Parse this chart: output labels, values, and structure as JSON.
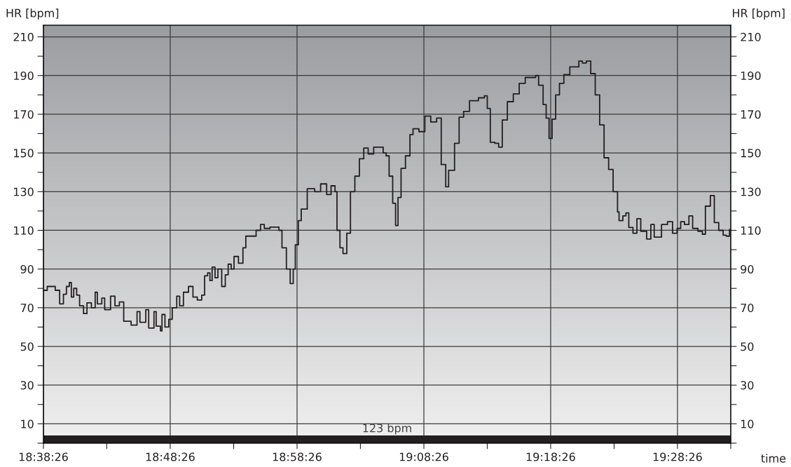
{
  "chart_data": {
    "type": "step",
    "xlabel": "time",
    "ylabel": "HR [bpm]",
    "y2label": "HR [bpm]",
    "x": [
      18.6406,
      18.6456,
      18.6514,
      18.6561,
      18.6619,
      18.6669,
      18.6708,
      18.6746,
      18.6773,
      18.6804,
      18.6843,
      18.6881,
      18.6933,
      18.6978,
      18.7036,
      18.7086,
      18.7114,
      18.7173,
      18.7211,
      18.7288,
      18.7346,
      18.7404,
      18.7461,
      18.7558,
      18.7636,
      18.7674,
      18.7751,
      18.7789,
      18.7859,
      18.7888,
      18.7944,
      18.7964,
      18.8003,
      18.8053,
      18.8099,
      18.8158,
      18.8196,
      18.8246,
      18.8313,
      18.8371,
      18.8428,
      18.8486,
      18.8524,
      18.8564,
      18.8594,
      18.8623,
      18.8661,
      18.8699,
      18.8749,
      18.8796,
      18.8834,
      18.8873,
      18.8911,
      18.8969,
      18.9028,
      18.9066,
      18.9144,
      18.9201,
      18.9259,
      18.9309,
      18.9384,
      18.9501,
      18.9541,
      18.9579,
      18.9599,
      18.9649,
      18.9689,
      18.9716,
      18.9756,
      18.9794,
      18.9873,
      18.9971,
      19.0049,
      19.0128,
      19.0186,
      19.0238,
      19.0264,
      19.0303,
      19.0343,
      19.0393,
      19.0441,
      19.0499,
      19.0558,
      19.0616,
      19.0674,
      19.0746,
      19.0871,
      19.0909,
      19.0949,
      19.0996,
      19.1034,
      19.1066,
      19.1106,
      19.1164,
      19.1223,
      19.1263,
      19.1341,
      19.1419,
      19.1496,
      19.1574,
      19.1634,
      19.1693,
      19.1731,
      19.1809,
      19.1869,
      19.1928,
      19.2006,
      19.2123,
      19.2201,
      19.2239,
      19.2279,
      19.2338,
      19.2389,
      19.2436,
      19.2503,
      19.2581,
      19.2659,
      19.2738,
      19.2874,
      19.2914,
      19.2973,
      19.3013,
      19.3051,
      19.3091,
      19.3138,
      19.3188,
      19.3246,
      19.3324,
      19.3443,
      19.3489,
      19.3541,
      19.3599,
      19.3658,
      19.3716,
      19.3774,
      19.3834,
      19.3893,
      19.3951,
      19.3971,
      19.4021,
      19.4061,
      19.4099,
      19.4154,
      19.4206,
      19.4256,
      19.4334,
      19.4389,
      19.4433,
      19.4479,
      19.4529,
      19.4608,
      19.4674,
      19.4734,
      19.4781,
      19.4831,
      19.4889,
      19.4938,
      19.5008,
      19.5066,
      19.5106,
      19.5171,
      19.5223,
      19.5281,
      19.5339,
      19.5381,
      19.5423
    ],
    "series": [
      {
        "color": "#231f20",
        "values": [
          79,
          81,
          81,
          79,
          72,
          77,
          81,
          83,
          75.5,
          80,
          76.5,
          71,
          67,
          72.5,
          70,
          78,
          72,
          75,
          69,
          76,
          71,
          73,
          63,
          61,
          68,
          62.5,
          69,
          59.5,
          68,
          60.5,
          58,
          66.5,
          60,
          64,
          70,
          76,
          71,
          78,
          81,
          75.5,
          74,
          76.5,
          86.5,
          88,
          84,
          91,
          85.5,
          90,
          81,
          87,
          92.5,
          90,
          96.5,
          93,
          101,
          107,
          107,
          110,
          113,
          111,
          111.7,
          110,
          101,
          101,
          90,
          82.5,
          90,
          102.5,
          115,
          121,
          131.5,
          130,
          134,
          128.5,
          133,
          130,
          110,
          101,
          98,
          108.5,
          130,
          138,
          147,
          152.5,
          149.5,
          153,
          150,
          148.5,
          138,
          124,
          112.5,
          127,
          142,
          148.5,
          159.5,
          162.5,
          161,
          169,
          166,
          168,
          144,
          132.5,
          141,
          155,
          168.5,
          171.5,
          177,
          178.5,
          179.5,
          173,
          155.5,
          155,
          153,
          167,
          176.5,
          180.5,
          186,
          189,
          190,
          185,
          175,
          168,
          157.5,
          167.5,
          180,
          186,
          190.5,
          194.5,
          197.5,
          196.5,
          197.5,
          191,
          180,
          164.5,
          147.5,
          141.5,
          130,
          119.5,
          115,
          117.5,
          119,
          111.5,
          108.5,
          116,
          109.5,
          105.5,
          113,
          106.5,
          106.5,
          113,
          114.5,
          108.5,
          111,
          114.5,
          113,
          117.5,
          111,
          109.5,
          108,
          122.5,
          128,
          114,
          110,
          107.5,
          107,
          110.5
        ]
      }
    ],
    "xlim": [
      18.6406,
      19.5439
    ],
    "xticks": [
      {
        "value": 18.6406,
        "label": "18:38:26"
      },
      {
        "value": 18.7239,
        "label": null
      },
      {
        "value": 18.8072,
        "label": "18:48:26"
      },
      {
        "value": 18.8906,
        "label": null
      },
      {
        "value": 18.9739,
        "label": "18:58:26"
      },
      {
        "value": 19.0572,
        "label": null
      },
      {
        "value": 19.1406,
        "label": "19:08:26"
      },
      {
        "value": 19.2239,
        "label": null
      },
      {
        "value": 19.3072,
        "label": "19:18:26"
      },
      {
        "value": 19.3906,
        "label": null
      },
      {
        "value": 19.4739,
        "label": "19:28:26"
      },
      {
        "value": 19.5439,
        "label": null
      }
    ],
    "ylim": [
      0,
      216
    ],
    "yticks": [
      {
        "value": 0,
        "label": null
      },
      10,
      {
        "value": 20,
        "label": null
      },
      30,
      {
        "value": 40,
        "label": null
      },
      50,
      {
        "value": 60,
        "label": null
      },
      70,
      {
        "value": 80,
        "label": null
      },
      90,
      {
        "value": 100,
        "label": null
      },
      110,
      {
        "value": 120,
        "label": null
      },
      130,
      {
        "value": 140,
        "label": null
      },
      150,
      {
        "value": 160,
        "label": null
      },
      170,
      {
        "value": 180,
        "label": null
      },
      190,
      {
        "value": 200,
        "label": null
      },
      210
    ],
    "y2lim": [
      0,
      216
    ],
    "y2ticks": [
      {
        "value": 0,
        "label": null
      },
      10,
      {
        "value": 20,
        "label": null
      },
      30,
      {
        "value": 40,
        "label": null
      },
      50,
      {
        "value": 60,
        "label": null
      },
      70,
      {
        "value": 80,
        "label": null
      },
      90,
      {
        "value": 100,
        "label": null
      },
      110,
      {
        "value": 120,
        "label": null
      },
      130,
      {
        "value": 140,
        "label": null
      },
      150,
      {
        "value": 160,
        "label": null
      },
      170,
      {
        "value": 180,
        "label": null
      },
      190,
      {
        "value": 200,
        "label": null
      },
      210
    ],
    "bands": [
      {
        "axis": "y",
        "from": 0,
        "to": 4,
        "label": "123 bpm",
        "color": "#231f20"
      }
    ],
    "grid": true,
    "legend": false,
    "line_style": "solid",
    "marker": "none"
  }
}
